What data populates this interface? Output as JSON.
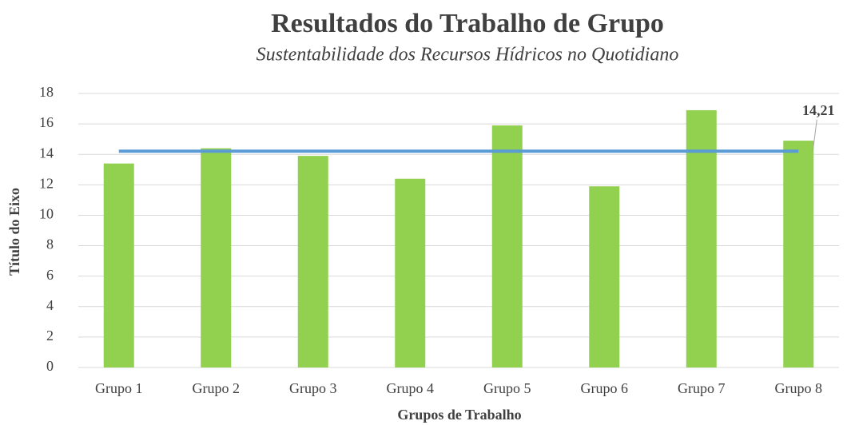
{
  "chart_data": {
    "type": "bar",
    "title": "Resultados do Trabalho de Grupo",
    "subtitle": "Sustentabilidade dos Recursos Hídricos no Quotidiano",
    "y_label": "Título do Eixo",
    "x_label": "Grupos de Trabalho",
    "categories": [
      "Grupo 1",
      "Grupo 2",
      "Grupo 3",
      "Grupo 4",
      "Grupo 5",
      "Grupo 6",
      "Grupo 7",
      "Grupo 8"
    ],
    "values": [
      13.4,
      14.4,
      13.9,
      12.4,
      15.9,
      11.9,
      16.9,
      14.9
    ],
    "color": "#92d050",
    "line": {
      "values": [
        14.21,
        14.21,
        14.21,
        14.21,
        14.21,
        14.21,
        14.21,
        14.21
      ],
      "value_labels": [
        null,
        null,
        null,
        null,
        null,
        null,
        null,
        "14,21"
      ],
      "color": "#5b9bd5"
    },
    "ylim": [
      0,
      18
    ],
    "yticks": [
      0,
      2,
      4,
      6,
      8,
      10,
      12,
      14,
      16,
      18
    ],
    "grid": true
  }
}
